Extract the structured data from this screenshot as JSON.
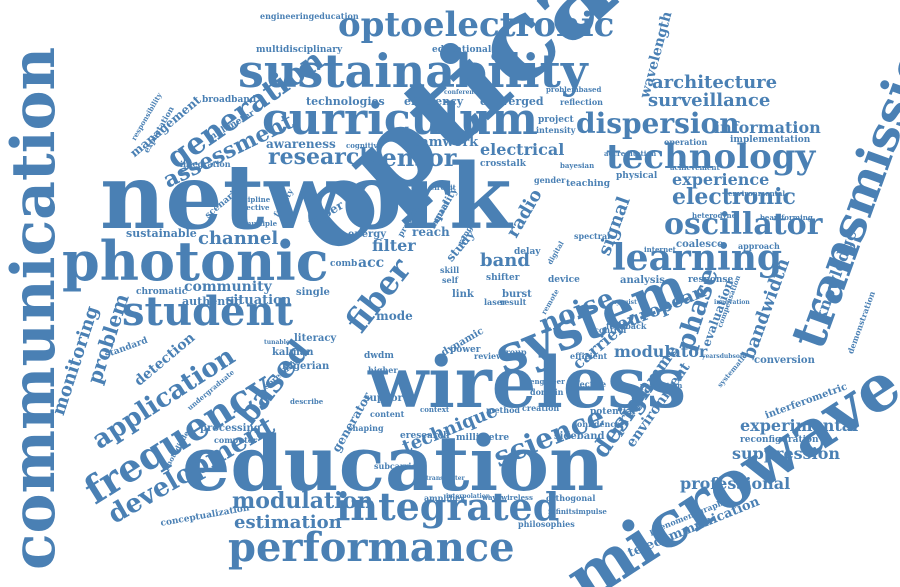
{
  "colors": {
    "primary": "#4a80b4",
    "secondary": "#7aa6d0",
    "background": "#ffffff"
  },
  "words": [
    {
      "id": "optical",
      "text": "optical"
    },
    {
      "id": "network",
      "text": "network"
    },
    {
      "id": "education",
      "text": "education"
    },
    {
      "id": "wireless",
      "text": "wireless"
    },
    {
      "id": "communication",
      "text": "communication"
    },
    {
      "id": "microwave",
      "text": "microwave"
    },
    {
      "id": "photonic",
      "text": "photonic"
    },
    {
      "id": "transmission",
      "text": "transmission"
    },
    {
      "id": "sustainability",
      "text": "sustainability"
    },
    {
      "id": "curriculum",
      "text": "curriculum"
    },
    {
      "id": "system",
      "text": "system"
    },
    {
      "id": "performance",
      "text": "performance"
    },
    {
      "id": "optoelectronic",
      "text": "optoelectronic"
    },
    {
      "id": "integrated",
      "text": "integrated"
    },
    {
      "id": "student",
      "text": "student"
    },
    {
      "id": "technology",
      "text": "technology"
    },
    {
      "id": "learning",
      "text": "learning"
    },
    {
      "id": "frequency",
      "text": "frequency"
    },
    {
      "id": "oscillator",
      "text": "oscillator"
    },
    {
      "id": "generation",
      "text": "generation"
    },
    {
      "id": "fiber",
      "text": "fiber"
    },
    {
      "id": "science",
      "text": "science"
    },
    {
      "id": "application",
      "text": "application"
    },
    {
      "id": "development",
      "text": "development"
    },
    {
      "id": "modulation",
      "text": "modulation"
    },
    {
      "id": "dispersion",
      "text": "dispersion"
    },
    {
      "id": "research",
      "text": "research"
    },
    {
      "id": "sensor",
      "text": "sensor"
    },
    {
      "id": "assessment",
      "text": "assessment"
    },
    {
      "id": "electronic",
      "text": "electronic"
    },
    {
      "id": "noise",
      "text": "noise"
    },
    {
      "id": "based",
      "text": "based"
    },
    {
      "id": "design",
      "text": "design"
    },
    {
      "id": "estimation",
      "text": "estimation"
    },
    {
      "id": "phase",
      "text": "phase"
    },
    {
      "id": "experience",
      "text": "experience"
    },
    {
      "id": "knowledge",
      "text": "knowledge"
    },
    {
      "id": "bandwidth",
      "text": "bandwidth"
    },
    {
      "id": "wavelength",
      "text": "wavelength"
    },
    {
      "id": "signal",
      "text": "signal"
    },
    {
      "id": "technique",
      "text": "technique"
    },
    {
      "id": "problem",
      "text": "problem"
    },
    {
      "id": "monitoring",
      "text": "monitoring"
    },
    {
      "id": "channel",
      "text": "channel"
    },
    {
      "id": "community",
      "text": "community"
    },
    {
      "id": "architecture",
      "text": "architecture"
    },
    {
      "id": "surveillance",
      "text": "surveillance"
    },
    {
      "id": "information",
      "text": "information"
    },
    {
      "id": "european",
      "text": "european"
    },
    {
      "id": "modulator",
      "text": "modulator"
    },
    {
      "id": "programme",
      "text": "programme"
    },
    {
      "id": "environment",
      "text": "environment"
    },
    {
      "id": "professional",
      "text": "professional"
    },
    {
      "id": "suppression",
      "text": "suppression"
    },
    {
      "id": "experimental",
      "text": "experimental"
    },
    {
      "id": "telecommunication",
      "text": "telecommunication"
    },
    {
      "id": "detection",
      "text": "detection"
    },
    {
      "id": "situation",
      "text": "situation"
    },
    {
      "id": "electrical",
      "text": "electrical"
    },
    {
      "id": "carrier",
      "text": "carrier"
    },
    {
      "id": "evaluation",
      "text": "evaluation"
    },
    {
      "id": "generator",
      "text": "generator"
    },
    {
      "id": "band",
      "text": "band"
    },
    {
      "id": "filter",
      "text": "filter"
    },
    {
      "id": "radio",
      "text": "radio"
    },
    {
      "id": "teamwork",
      "text": "teamwork"
    },
    {
      "id": "awareness",
      "text": "awareness"
    },
    {
      "id": "technologies",
      "text": "technologies"
    },
    {
      "id": "efficiency",
      "text": "efficiency"
    },
    {
      "id": "converged",
      "text": "converged"
    },
    {
      "id": "management",
      "text": "management"
    },
    {
      "id": "broadband",
      "text": "broadband"
    },
    {
      "id": "multidisciplinary",
      "text": "multidisciplinary"
    },
    {
      "id": "educational",
      "text": "educational"
    },
    {
      "id": "sustainable",
      "text": "sustainable"
    },
    {
      "id": "chromatic",
      "text": "chromatic"
    },
    {
      "id": "authentic",
      "text": "authentic"
    },
    {
      "id": "standard",
      "text": "standard"
    },
    {
      "id": "processing",
      "text": "processing"
    },
    {
      "id": "computer",
      "text": "computer"
    },
    {
      "id": "conceptualization",
      "text": "conceptualization"
    },
    {
      "id": "amplifier",
      "text": "amplifier"
    },
    {
      "id": "orthogonal",
      "text": "orthogonal"
    },
    {
      "id": "philosophies",
      "text": "philosophies"
    },
    {
      "id": "subcarrier",
      "text": "subcarrier"
    },
    {
      "id": "eresearch",
      "text": "eresearch"
    },
    {
      "id": "sideband",
      "text": "sideband"
    },
    {
      "id": "support",
      "text": "support"
    },
    {
      "id": "content",
      "text": "content"
    },
    {
      "id": "kalman",
      "text": "kalman"
    },
    {
      "id": "nigerian",
      "text": "nigerian"
    },
    {
      "id": "dwdm",
      "text": "dwdm"
    },
    {
      "id": "literacy",
      "text": "literacy"
    },
    {
      "id": "mode",
      "text": "mode"
    },
    {
      "id": "single",
      "text": "single"
    },
    {
      "id": "paper",
      "text": "paper"
    },
    {
      "id": "energy",
      "text": "energy"
    },
    {
      "id": "comb",
      "text": "comb"
    },
    {
      "id": "reach",
      "text": "reach"
    },
    {
      "id": "acc",
      "text": "acc"
    },
    {
      "id": "study",
      "text": "study"
    },
    {
      "id": "quality",
      "text": "quality"
    },
    {
      "id": "link",
      "text": "link"
    },
    {
      "id": "dynamic",
      "text": "dynamic"
    },
    {
      "id": "laser",
      "text": "laser"
    },
    {
      "id": "result",
      "text": "result"
    },
    {
      "id": "burst",
      "text": "burst"
    },
    {
      "id": "delay",
      "text": "delay"
    },
    {
      "id": "shifter",
      "text": "shifter"
    },
    {
      "id": "device",
      "text": "device"
    },
    {
      "id": "project",
      "text": "project"
    },
    {
      "id": "intensity",
      "text": "intensity"
    },
    {
      "id": "reflection",
      "text": "reflection"
    },
    {
      "id": "crosstalk",
      "text": "crosstalk"
    },
    {
      "id": "teaching",
      "text": "teaching"
    },
    {
      "id": "physical",
      "text": "physical"
    },
    {
      "id": "implementation",
      "text": "implementation"
    },
    {
      "id": "operation",
      "text": "operation"
    },
    {
      "id": "achievement",
      "text": "achievement"
    },
    {
      "id": "coalesce",
      "text": "coalesce"
    },
    {
      "id": "approach",
      "text": "approach"
    },
    {
      "id": "response",
      "text": "response"
    },
    {
      "id": "analysis",
      "text": "analysis"
    },
    {
      "id": "conversion",
      "text": "conversion"
    },
    {
      "id": "demonstration",
      "text": "demonstration"
    },
    {
      "id": "interferometric",
      "text": "interferometric"
    },
    {
      "id": "reconfiguration",
      "text": "reconfiguration"
    },
    {
      "id": "potential",
      "text": "potential"
    },
    {
      "id": "confidence",
      "text": "confidence"
    },
    {
      "id": "creation",
      "text": "creation"
    },
    {
      "id": "method",
      "text": "method"
    },
    {
      "id": "millimetre",
      "text": "millimetre"
    },
    {
      "id": "effective",
      "text": "effective"
    },
    {
      "id": "efficient",
      "text": "efficient"
    },
    {
      "id": "domain",
      "text": "domain"
    },
    {
      "id": "engineer",
      "text": "engineer"
    },
    {
      "id": "control",
      "text": "control"
    },
    {
      "id": "feedback",
      "text": "feedback"
    },
    {
      "id": "power",
      "text": "power"
    },
    {
      "id": "review",
      "text": "review"
    },
    {
      "id": "group",
      "text": "group"
    },
    {
      "id": "higher",
      "text": "higher"
    },
    {
      "id": "spreading",
      "text": "spreading"
    },
    {
      "id": "shaping",
      "text": "shaping"
    },
    {
      "id": "describe",
      "text": "describe"
    },
    {
      "id": "context",
      "text": "context"
    },
    {
      "id": "engineeringeducation",
      "text": "engineeringeducation"
    },
    {
      "id": "millimeter",
      "text": "millimeter"
    },
    {
      "id": "integration",
      "text": "integration"
    },
    {
      "id": "expectation",
      "text": "expectation"
    },
    {
      "id": "responsibility",
      "text": "responsibility"
    },
    {
      "id": "scenario",
      "text": "scenario"
    },
    {
      "id": "discipline",
      "text": "discipline"
    },
    {
      "id": "affective",
      "text": "affective"
    },
    {
      "id": "multiple",
      "text": "multiple"
    },
    {
      "id": "faculty",
      "text": "faculty"
    },
    {
      "id": "cognitive",
      "text": "cognitive"
    },
    {
      "id": "gender",
      "text": "gender"
    },
    {
      "id": "circuit",
      "text": "circuit"
    },
    {
      "id": "impact",
      "text": "impact"
    },
    {
      "id": "present",
      "text": "present"
    },
    {
      "id": "skill",
      "text": "skill"
    },
    {
      "id": "self",
      "text": "self"
    },
    {
      "id": "range",
      "text": "range"
    },
    {
      "id": "spectral",
      "text": "spectral"
    },
    {
      "id": "digital",
      "text": "digital"
    },
    {
      "id": "internet",
      "text": "internet"
    },
    {
      "id": "heterodyne",
      "text": "heterodyne"
    },
    {
      "id": "beamforming",
      "text": "beamforming"
    },
    {
      "id": "environmental",
      "text": "environmental"
    },
    {
      "id": "compensation",
      "text": "compensation"
    },
    {
      "id": "accreditation",
      "text": "accreditation"
    },
    {
      "id": "bayesian",
      "text": "bayesian"
    },
    {
      "id": "problembased",
      "text": "problembased"
    },
    {
      "id": "conference",
      "text": "conference"
    },
    {
      "id": "wavewireless",
      "text": "wavewireless"
    },
    {
      "id": "interpolation",
      "text": "interpolation"
    },
    {
      "id": "infinitsimpulse",
      "text": "infinitsimpulse"
    },
    {
      "id": "phenomenography",
      "text": "phenomenography"
    },
    {
      "id": "undergraduate",
      "text": "undergraduate"
    },
    {
      "id": "photodiode",
      "text": "photodiode"
    },
    {
      "id": "tunable",
      "text": "tunable"
    },
    {
      "id": "perception",
      "text": "perception"
    },
    {
      "id": "systematic",
      "text": "systematic"
    },
    {
      "id": "yearsdubsolo",
      "text": "yearsdubsolo"
    },
    {
      "id": "nyquist",
      "text": "nyquist"
    },
    {
      "id": "innovation",
      "text": "innovation"
    },
    {
      "id": "remote",
      "text": "remote"
    },
    {
      "id": "transmitter",
      "text": "transmitter"
    }
  ]
}
